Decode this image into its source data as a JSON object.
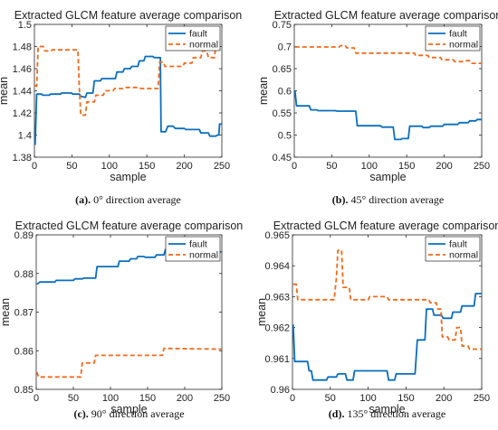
{
  "chart_data": [
    {
      "type": "line",
      "title": "Extracted GLCM feature average comparison",
      "xlabel": "sample",
      "ylabel": "mean",
      "caption_bold": "(a).",
      "caption_rest": " 0° direction average",
      "xlim": [
        0,
        250
      ],
      "ylim": [
        1.38,
        1.5
      ],
      "xticks": [
        "0",
        "50",
        "100",
        "150",
        "200",
        "250"
      ],
      "yticks": [
        "1.38",
        "1.4",
        "1.42",
        "1.44",
        "1.46",
        "1.48",
        "1.5"
      ],
      "legend_position": "top-right",
      "series": [
        {
          "name": "fault",
          "color": "#0a6ebd",
          "style": "solid",
          "points": [
            [
              1,
              1.391
            ],
            [
              3,
              1.437
            ],
            [
              10,
              1.437
            ],
            [
              11,
              1.436
            ],
            [
              20,
              1.436
            ],
            [
              21,
              1.437
            ],
            [
              35,
              1.437
            ],
            [
              36,
              1.438
            ],
            [
              50,
              1.438
            ],
            [
              51,
              1.437
            ],
            [
              60,
              1.437
            ],
            [
              62,
              1.435
            ],
            [
              68,
              1.434
            ],
            [
              70,
              1.438
            ],
            [
              78,
              1.438
            ],
            [
              80,
              1.449
            ],
            [
              88,
              1.449
            ],
            [
              90,
              1.451
            ],
            [
              108,
              1.451
            ],
            [
              110,
              1.457
            ],
            [
              118,
              1.457
            ],
            [
              120,
              1.46
            ],
            [
              128,
              1.46
            ],
            [
              130,
              1.462
            ],
            [
              138,
              1.462
            ],
            [
              140,
              1.467
            ],
            [
              146,
              1.467
            ],
            [
              148,
              1.471
            ],
            [
              158,
              1.471
            ],
            [
              160,
              1.47
            ],
            [
              168,
              1.47
            ],
            [
              169,
              1.403
            ],
            [
              175,
              1.403
            ],
            [
              178,
              1.408
            ],
            [
              185,
              1.408
            ],
            [
              188,
              1.406
            ],
            [
              200,
              1.406
            ],
            [
              202,
              1.405
            ],
            [
              220,
              1.405
            ],
            [
              222,
              1.402
            ],
            [
              232,
              1.402
            ],
            [
              234,
              1.399
            ],
            [
              242,
              1.399
            ],
            [
              244,
              1.4
            ],
            [
              246,
              1.4
            ],
            [
              247,
              1.41
            ],
            [
              250,
              1.41
            ]
          ]
        },
        {
          "name": "normal",
          "color": "#f26a1b",
          "style": "dashed",
          "points": [
            [
              1,
              1.445
            ],
            [
              3,
              1.444
            ],
            [
              5,
              1.48
            ],
            [
              12,
              1.48
            ],
            [
              14,
              1.476
            ],
            [
              22,
              1.476
            ],
            [
              24,
              1.477
            ],
            [
              58,
              1.477
            ],
            [
              60,
              1.441
            ],
            [
              62,
              1.418
            ],
            [
              68,
              1.418
            ],
            [
              70,
              1.43
            ],
            [
              80,
              1.43
            ],
            [
              82,
              1.436
            ],
            [
              92,
              1.436
            ],
            [
              94,
              1.44
            ],
            [
              105,
              1.44
            ],
            [
              107,
              1.442
            ],
            [
              118,
              1.442
            ],
            [
              120,
              1.443
            ],
            [
              140,
              1.443
            ],
            [
              142,
              1.442
            ],
            [
              165,
              1.442
            ],
            [
              167,
              1.466
            ],
            [
              172,
              1.466
            ],
            [
              174,
              1.462
            ],
            [
              198,
              1.462
            ],
            [
              200,
              1.465
            ],
            [
              210,
              1.465
            ],
            [
              212,
              1.47
            ],
            [
              222,
              1.47
            ],
            [
              224,
              1.476
            ],
            [
              230,
              1.476
            ],
            [
              232,
              1.47
            ],
            [
              240,
              1.47
            ],
            [
              242,
              1.48
            ],
            [
              250,
              1.48
            ]
          ]
        }
      ]
    },
    {
      "type": "line",
      "title": "Extracted GLCM feature average comparison",
      "xlabel": "sample",
      "ylabel": "mean",
      "caption_bold": "(b).",
      "caption_rest": " 45° direction average",
      "xlim": [
        0,
        250
      ],
      "ylim": [
        0.45,
        0.75
      ],
      "xticks": [
        "0",
        "50",
        "100",
        "150",
        "200",
        "250"
      ],
      "yticks": [
        "0.45",
        "0.5",
        "0.55",
        "0.6",
        "0.65",
        "0.7",
        "0.75"
      ],
      "legend_position": "top-right",
      "series": [
        {
          "name": "fault",
          "color": "#0a6ebd",
          "style": "solid",
          "points": [
            [
              1,
              0.6
            ],
            [
              3,
              0.566
            ],
            [
              20,
              0.566
            ],
            [
              22,
              0.557
            ],
            [
              30,
              0.557
            ],
            [
              32,
              0.555
            ],
            [
              55,
              0.555
            ],
            [
              57,
              0.554
            ],
            [
              82,
              0.554
            ],
            [
              84,
              0.521
            ],
            [
              115,
              0.521
            ],
            [
              117,
              0.518
            ],
            [
              132,
              0.518
            ],
            [
              134,
              0.49
            ],
            [
              142,
              0.49
            ],
            [
              144,
              0.492
            ],
            [
              152,
              0.492
            ],
            [
              154,
              0.52
            ],
            [
              170,
              0.52
            ],
            [
              172,
              0.517
            ],
            [
              180,
              0.517
            ],
            [
              182,
              0.52
            ],
            [
              198,
              0.52
            ],
            [
              200,
              0.524
            ],
            [
              218,
              0.524
            ],
            [
              220,
              0.528
            ],
            [
              232,
              0.528
            ],
            [
              234,
              0.532
            ],
            [
              242,
              0.532
            ],
            [
              244,
              0.535
            ],
            [
              250,
              0.535
            ]
          ]
        },
        {
          "name": "normal",
          "color": "#f26a1b",
          "style": "dashed",
          "points": [
            [
              1,
              0.699
            ],
            [
              60,
              0.699
            ],
            [
              62,
              0.702
            ],
            [
              68,
              0.702
            ],
            [
              70,
              0.697
            ],
            [
              80,
              0.697
            ],
            [
              82,
              0.685
            ],
            [
              160,
              0.685
            ],
            [
              162,
              0.68
            ],
            [
              178,
              0.68
            ],
            [
              180,
              0.675
            ],
            [
              195,
              0.675
            ],
            [
              197,
              0.67
            ],
            [
              212,
              0.67
            ],
            [
              214,
              0.666
            ],
            [
              225,
              0.666
            ],
            [
              227,
              0.668
            ],
            [
              235,
              0.668
            ],
            [
              237,
              0.662
            ],
            [
              250,
              0.662
            ]
          ]
        }
      ]
    },
    {
      "type": "line",
      "title": "Extracted GLCM feature average comparison",
      "xlabel": "sample",
      "ylabel": "mean",
      "caption_bold": "(c).",
      "caption_rest": " 90° direction average",
      "xlim": [
        0,
        250
      ],
      "ylim": [
        0.85,
        0.89
      ],
      "xticks": [
        "0",
        "50",
        "100",
        "150",
        "200",
        "250"
      ],
      "yticks": [
        "0.85",
        "0.86",
        "0.87",
        "0.88",
        "0.89"
      ],
      "legend_position": "top-right",
      "series": [
        {
          "name": "fault",
          "color": "#0a6ebd",
          "style": "solid",
          "points": [
            [
              1,
              0.8772
            ],
            [
              5,
              0.8778
            ],
            [
              25,
              0.8778
            ],
            [
              27,
              0.8782
            ],
            [
              50,
              0.8782
            ],
            [
              52,
              0.8786
            ],
            [
              62,
              0.8786
            ],
            [
              64,
              0.8788
            ],
            [
              80,
              0.8788
            ],
            [
              82,
              0.8818
            ],
            [
              110,
              0.8818
            ],
            [
              112,
              0.8832
            ],
            [
              125,
              0.8832
            ],
            [
              127,
              0.8838
            ],
            [
              135,
              0.8838
            ],
            [
              137,
              0.8844
            ],
            [
              145,
              0.8844
            ],
            [
              147,
              0.8842
            ],
            [
              160,
              0.8842
            ],
            [
              162,
              0.8848
            ],
            [
              172,
              0.8848
            ],
            [
              174,
              0.8862
            ],
            [
              185,
              0.8862
            ],
            [
              187,
              0.8856
            ],
            [
              200,
              0.8856
            ],
            [
              202,
              0.8858
            ],
            [
              215,
              0.8858
            ],
            [
              217,
              0.8862
            ],
            [
              228,
              0.8862
            ],
            [
              230,
              0.8856
            ],
            [
              250,
              0.8856
            ]
          ]
        },
        {
          "name": "normal",
          "color": "#f26a1b",
          "style": "dashed",
          "points": [
            [
              1,
              0.8545
            ],
            [
              3,
              0.8532
            ],
            [
              60,
              0.8532
            ],
            [
              62,
              0.8568
            ],
            [
              78,
              0.8568
            ],
            [
              80,
              0.8588
            ],
            [
              170,
              0.8588
            ],
            [
              172,
              0.8606
            ],
            [
              250,
              0.8604
            ]
          ]
        }
      ]
    },
    {
      "type": "line",
      "title": "Extracted GLCM feature average comparison",
      "xlabel": "sample",
      "ylabel": "mean",
      "caption_bold": "(d).",
      "caption_rest": " 135° direction average",
      "xlim": [
        0,
        250
      ],
      "ylim": [
        0.96,
        0.965
      ],
      "xticks": [
        "0",
        "50",
        "100",
        "150",
        "200",
        "250"
      ],
      "yticks": [
        "0.96",
        "0.961",
        "0.962",
        "0.963",
        "0.964",
        "0.965"
      ],
      "legend_position": "top-right",
      "series": [
        {
          "name": "fault",
          "color": "#0a6ebd",
          "style": "solid",
          "points": [
            [
              1,
              0.9621
            ],
            [
              3,
              0.9609
            ],
            [
              20,
              0.9609
            ],
            [
              22,
              0.9606
            ],
            [
              25,
              0.9606
            ],
            [
              27,
              0.9603
            ],
            [
              45,
              0.9603
            ],
            [
              47,
              0.9604
            ],
            [
              58,
              0.9604
            ],
            [
              60,
              0.9605
            ],
            [
              70,
              0.9605
            ],
            [
              72,
              0.9603
            ],
            [
              80,
              0.9603
            ],
            [
              82,
              0.9606
            ],
            [
              125,
              0.9606
            ],
            [
              127,
              0.9603
            ],
            [
              135,
              0.9603
            ],
            [
              137,
              0.9605
            ],
            [
              162,
              0.9605
            ],
            [
              165,
              0.9616
            ],
            [
              175,
              0.9616
            ],
            [
              177,
              0.9626
            ],
            [
              185,
              0.9626
            ],
            [
              187,
              0.9624
            ],
            [
              197,
              0.9624
            ],
            [
              199,
              0.9623
            ],
            [
              210,
              0.9623
            ],
            [
              212,
              0.9625
            ],
            [
              222,
              0.9625
            ],
            [
              224,
              0.9627
            ],
            [
              240,
              0.9627
            ],
            [
              242,
              0.9631
            ],
            [
              250,
              0.9631
            ]
          ]
        },
        {
          "name": "normal",
          "color": "#f26a1b",
          "style": "dashed",
          "points": [
            [
              1,
              0.9634
            ],
            [
              5,
              0.9634
            ],
            [
              7,
              0.9629
            ],
            [
              55,
              0.9629
            ],
            [
              58,
              0.9636
            ],
            [
              60,
              0.9645
            ],
            [
              65,
              0.9645
            ],
            [
              67,
              0.9633
            ],
            [
              75,
              0.9633
            ],
            [
              77,
              0.9629
            ],
            [
              100,
              0.9629
            ],
            [
              102,
              0.963
            ],
            [
              125,
              0.963
            ],
            [
              127,
              0.9629
            ],
            [
              180,
              0.9629
            ],
            [
              182,
              0.9628
            ],
            [
              190,
              0.9628
            ],
            [
              192,
              0.9626
            ],
            [
              196,
              0.9626
            ],
            [
              198,
              0.9617
            ],
            [
              205,
              0.9617
            ],
            [
              207,
              0.9616
            ],
            [
              215,
              0.9616
            ],
            [
              217,
              0.962
            ],
            [
              222,
              0.962
            ],
            [
              224,
              0.9614
            ],
            [
              232,
              0.9614
            ],
            [
              234,
              0.9613
            ],
            [
              250,
              0.9613
            ]
          ]
        }
      ]
    }
  ]
}
